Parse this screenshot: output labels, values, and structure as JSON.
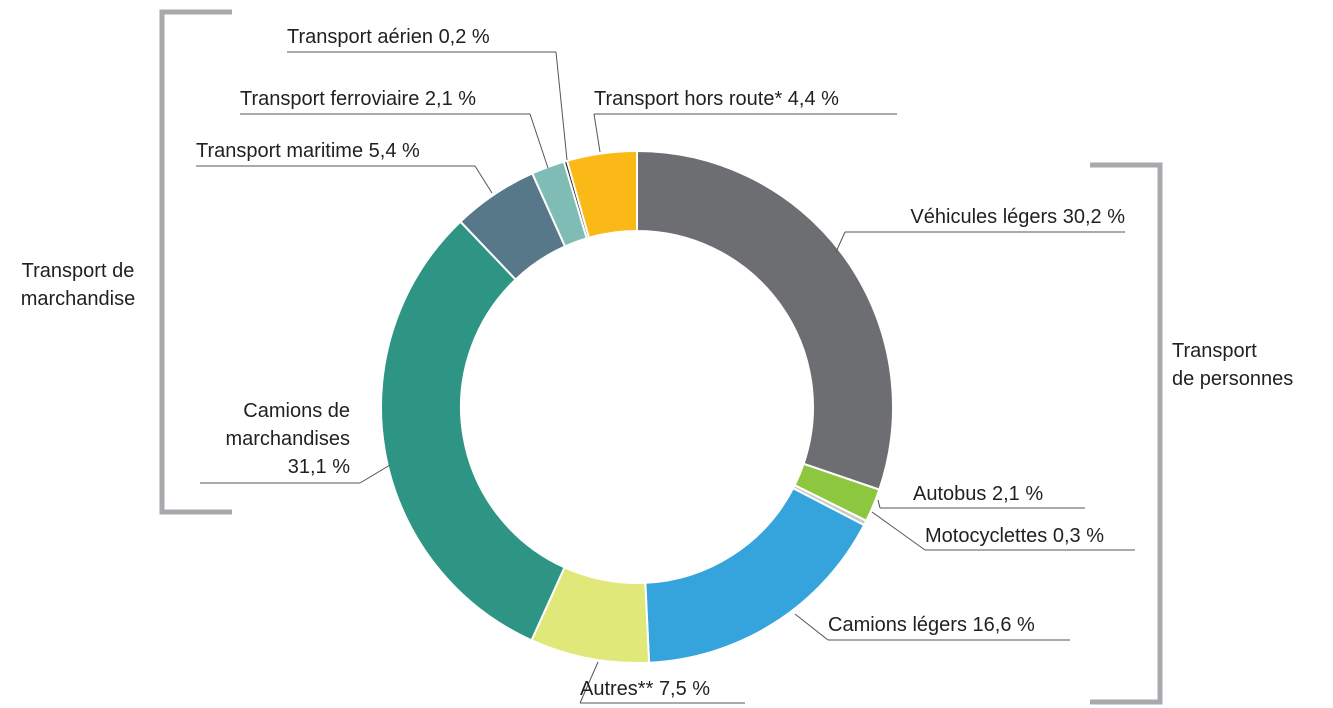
{
  "chart_data": {
    "type": "donut",
    "categories": [
      "Véhicules légers",
      "Autobus",
      "Motocyclettes",
      "Camions légers",
      "Autres**",
      "Camions de marchandises",
      "Transport maritime",
      "Transport ferroviaire",
      "Transport aérien",
      "Transport hors route*"
    ],
    "values": [
      30.2,
      2.1,
      0.3,
      16.6,
      7.5,
      31.1,
      5.4,
      2.1,
      0.2,
      4.4
    ],
    "value_labels": [
      "30,2 %",
      "2,1 %",
      "0,3 %",
      "16,6 %",
      "7,5 %",
      "31,1 %",
      "5,4 %",
      "2,1 %",
      "0,2 %",
      "4,4 %"
    ],
    "colors": [
      "#6d6e71",
      "#8dc63f",
      "#c9cacb",
      "#35a3dc",
      "#e1e87a",
      "#2e9585",
      "#567889",
      "#7fbcb5",
      "#231f20",
      "#fbb917"
    ],
    "groups": [
      "Transport de marchandise",
      "Transport de personnes"
    ]
  }
}
